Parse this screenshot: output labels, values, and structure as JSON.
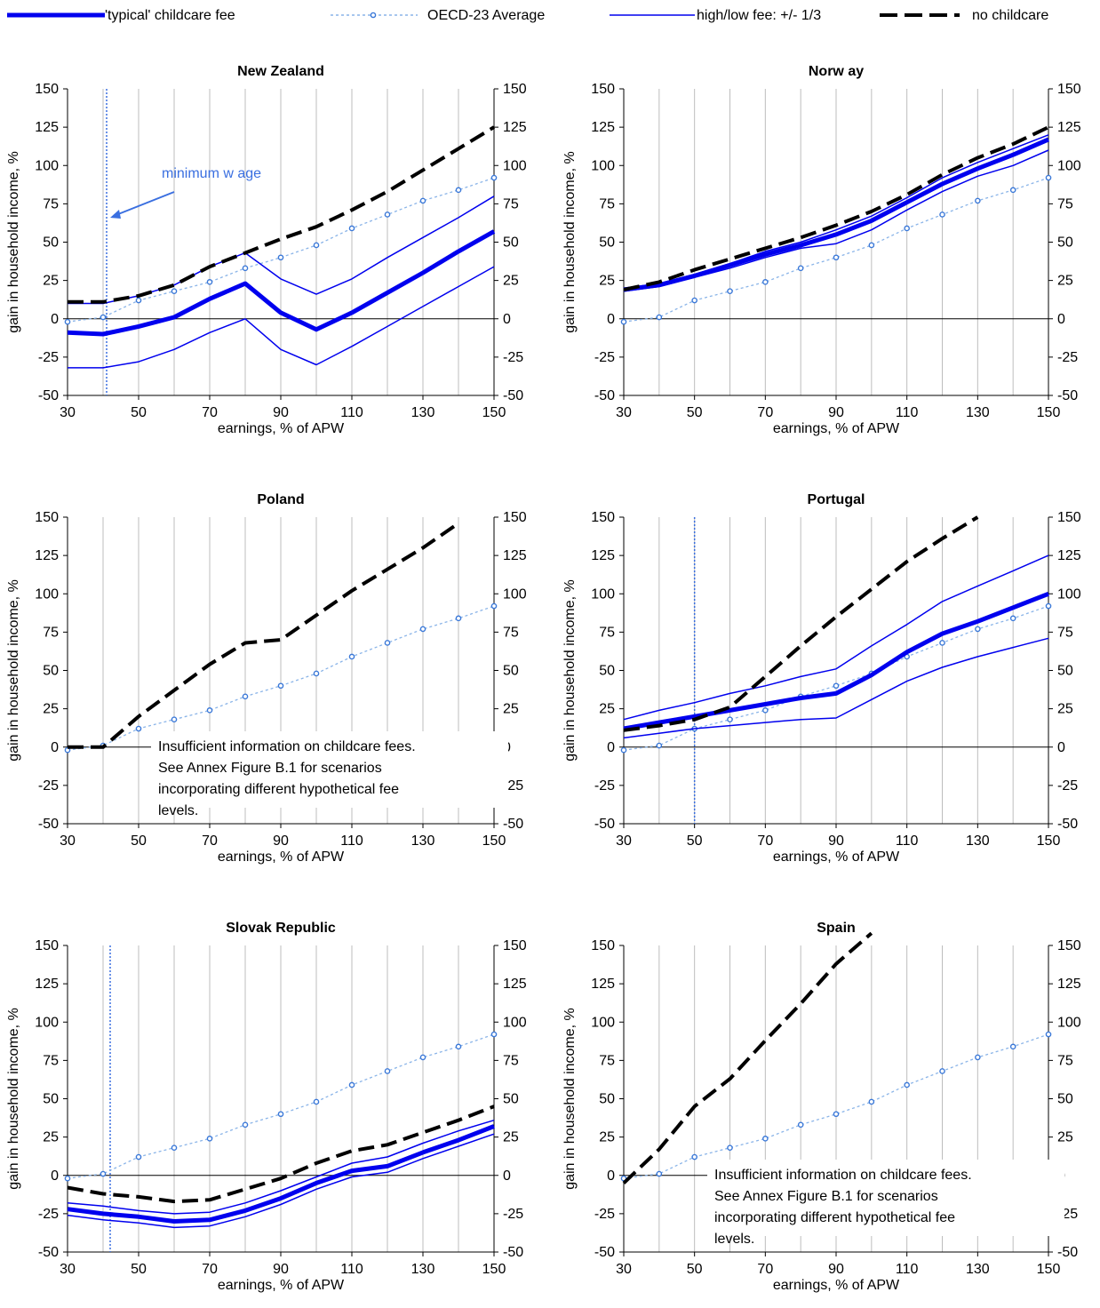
{
  "legend": {
    "items": [
      {
        "key": "typical",
        "label": "'typical' childcare fee"
      },
      {
        "key": "oecd",
        "label": "OECD-23 Average"
      },
      {
        "key": "highlow",
        "label": "high/low  fee: +/- 1/3"
      },
      {
        "key": "nochild",
        "label": "no childcare"
      }
    ]
  },
  "colors": {
    "fee_lines": "#0000ee",
    "oecd_line": "#8ab4e8",
    "oecd_marker": "#3a78d8",
    "no_childcare": "#000000",
    "minwage_line": "#3a6fe0",
    "grid": "#bdbdbd"
  },
  "chart_data": [
    {
      "type": "line",
      "title": "New Zealand",
      "xlabel": "earnings, % of APW",
      "ylabel": "gain in household income, %",
      "xlim": [
        30,
        150
      ],
      "ylim": [
        -50,
        150
      ],
      "x_ticks": [
        30,
        50,
        70,
        90,
        110,
        130,
        150
      ],
      "y_ticks": [
        -50,
        -25,
        0,
        25,
        50,
        75,
        100,
        125,
        150
      ],
      "grid": true,
      "x": [
        30,
        40,
        50,
        60,
        70,
        80,
        90,
        100,
        110,
        120,
        130,
        140,
        150
      ],
      "series": [
        {
          "name": "'typical' childcare fee",
          "values": [
            -9,
            -10,
            -5,
            1,
            13,
            23,
            4,
            -7,
            4,
            17,
            30,
            44,
            57
          ]
        },
        {
          "name": "OECD-23 Average",
          "values": [
            -2,
            1,
            12,
            18,
            24,
            33,
            40,
            48,
            59,
            68,
            77,
            84,
            92
          ]
        },
        {
          "name": "high/low  fee: +/- 1/3",
          "values": [
            10,
            10,
            15,
            22,
            34,
            43,
            26,
            16,
            26,
            40,
            53,
            66,
            80
          ]
        },
        {
          "name": "high/low  fee: +/- 1/3",
          "values": [
            -32,
            -32,
            -28,
            -20,
            -9,
            0,
            -20,
            -30,
            -18,
            -5,
            8,
            21,
            34
          ]
        },
        {
          "name": "no childcare",
          "values": [
            11,
            11,
            15,
            22,
            34,
            43,
            52,
            60,
            71,
            83,
            97,
            111,
            125
          ]
        }
      ],
      "minimum_wage_x": 41,
      "annotation": "minimum w age",
      "note": ""
    },
    {
      "type": "line",
      "title": "Norw ay",
      "xlabel": "earnings, % of APW",
      "ylabel": "gain in household income, %",
      "xlim": [
        30,
        150
      ],
      "ylim": [
        -50,
        150
      ],
      "x_ticks": [
        30,
        50,
        70,
        90,
        110,
        130,
        150
      ],
      "y_ticks": [
        -50,
        -25,
        0,
        25,
        50,
        75,
        100,
        125,
        150
      ],
      "grid": true,
      "x": [
        30,
        40,
        50,
        60,
        70,
        80,
        90,
        100,
        110,
        120,
        130,
        140,
        150
      ],
      "series": [
        {
          "name": "'typical' childcare fee",
          "values": [
            19,
            22,
            28,
            35,
            42,
            48,
            55,
            64,
            76,
            88,
            98,
            107,
            117
          ]
        },
        {
          "name": "OECD-23 Average",
          "values": [
            -2,
            1,
            12,
            18,
            24,
            33,
            40,
            48,
            59,
            68,
            77,
            84,
            92
          ]
        },
        {
          "name": "high/low  fee: +/- 1/3",
          "values": [
            20,
            23,
            29,
            36,
            44,
            50,
            58,
            67,
            79,
            92,
            102,
            111,
            120
          ]
        },
        {
          "name": "high/low  fee: +/- 1/3",
          "values": [
            18,
            21,
            27,
            33,
            40,
            46,
            49,
            58,
            71,
            83,
            93,
            100,
            110
          ]
        },
        {
          "name": "no childcare",
          "values": [
            19,
            24,
            32,
            39,
            46,
            53,
            61,
            70,
            81,
            94,
            105,
            114,
            125
          ]
        }
      ],
      "minimum_wage_x": null,
      "annotation": "",
      "note": ""
    },
    {
      "type": "line",
      "title": "Poland",
      "xlabel": "earnings, % of APW",
      "ylabel": "gain in household income, %",
      "xlim": [
        30,
        150
      ],
      "ylim": [
        -50,
        150
      ],
      "x_ticks": [
        30,
        50,
        70,
        90,
        110,
        130,
        150
      ],
      "y_ticks": [
        -50,
        -25,
        0,
        25,
        50,
        75,
        100,
        125,
        150
      ],
      "grid": true,
      "x": [
        30,
        40,
        50,
        60,
        70,
        80,
        90,
        100,
        110,
        120,
        130,
        140,
        150
      ],
      "series": [
        {
          "name": "OECD-23 Average",
          "values": [
            -2,
            1,
            12,
            18,
            24,
            33,
            40,
            48,
            59,
            68,
            77,
            84,
            92
          ]
        },
        {
          "name": "no childcare",
          "values": [
            0,
            0,
            20,
            37,
            54,
            68,
            70,
            86,
            102,
            116,
            130,
            146,
            null
          ]
        }
      ],
      "minimum_wage_x": null,
      "annotation": "",
      "note": "Insufficient information on childcare fees. See Annex Figure B.1 for scenarios incorporating different hypothetical fee levels."
    },
    {
      "type": "line",
      "title": "Portugal",
      "xlabel": "earnings, % of APW",
      "ylabel": "gain in household income, %",
      "xlim": [
        30,
        150
      ],
      "ylim": [
        -50,
        150
      ],
      "x_ticks": [
        30,
        50,
        70,
        90,
        110,
        130,
        150
      ],
      "y_ticks": [
        -50,
        -25,
        0,
        25,
        50,
        75,
        100,
        125,
        150
      ],
      "grid": true,
      "x": [
        30,
        40,
        50,
        60,
        70,
        80,
        90,
        100,
        110,
        120,
        130,
        140,
        150
      ],
      "series": [
        {
          "name": "'typical' childcare fee",
          "values": [
            12,
            16,
            20,
            24,
            28,
            32,
            35,
            47,
            62,
            74,
            82,
            91,
            100
          ]
        },
        {
          "name": "OECD-23 Average",
          "values": [
            -2,
            1,
            12,
            18,
            24,
            33,
            40,
            48,
            59,
            68,
            77,
            84,
            92
          ]
        },
        {
          "name": "high/low  fee: +/- 1/3",
          "values": [
            18,
            24,
            29,
            35,
            40,
            46,
            51,
            66,
            80,
            95,
            105,
            115,
            125
          ]
        },
        {
          "name": "high/low  fee: +/- 1/3",
          "values": [
            6,
            9,
            12,
            14,
            16,
            18,
            19,
            31,
            43,
            52,
            59,
            65,
            71
          ]
        },
        {
          "name": "no childcare",
          "values": [
            11,
            14,
            18,
            26,
            46,
            66,
            85,
            103,
            121,
            136,
            150,
            null,
            null
          ]
        }
      ],
      "minimum_wage_x": 50,
      "annotation": "",
      "note": ""
    },
    {
      "type": "line",
      "title": "Slovak Republic",
      "xlabel": "earnings, % of APW",
      "ylabel": "gain in household income, %",
      "xlim": [
        30,
        150
      ],
      "ylim": [
        -50,
        150
      ],
      "x_ticks": [
        30,
        50,
        70,
        90,
        110,
        130,
        150
      ],
      "y_ticks": [
        -50,
        -25,
        0,
        25,
        50,
        75,
        100,
        125,
        150
      ],
      "grid": true,
      "x": [
        30,
        40,
        50,
        60,
        70,
        80,
        90,
        100,
        110,
        120,
        130,
        140,
        150
      ],
      "series": [
        {
          "name": "'typical' childcare fee",
          "values": [
            -22,
            -25,
            -27,
            -30,
            -29,
            -23,
            -15,
            -5,
            3,
            6,
            15,
            23,
            32
          ]
        },
        {
          "name": "OECD-23 Average",
          "values": [
            -2,
            1,
            12,
            18,
            24,
            33,
            40,
            48,
            59,
            68,
            77,
            84,
            92
          ]
        },
        {
          "name": "high/low  fee: +/- 1/3",
          "values": [
            -18,
            -20,
            -23,
            -25,
            -24,
            -18,
            -10,
            -1,
            8,
            12,
            21,
            29,
            36
          ]
        },
        {
          "name": "high/low  fee: +/- 1/3",
          "values": [
            -26,
            -29,
            -31,
            -34,
            -33,
            -27,
            -19,
            -9,
            -1,
            2,
            11,
            19,
            27
          ]
        },
        {
          "name": "no childcare",
          "values": [
            -8,
            -12,
            -14,
            -17,
            -16,
            -9,
            -2,
            8,
            16,
            20,
            28,
            36,
            45
          ]
        }
      ],
      "minimum_wage_x": 42,
      "annotation": "",
      "note": ""
    },
    {
      "type": "line",
      "title": "Spain",
      "xlabel": "earnings, % of APW",
      "ylabel": "gain in household income, %",
      "xlim": [
        30,
        150
      ],
      "ylim": [
        -50,
        150
      ],
      "x_ticks": [
        30,
        50,
        70,
        90,
        110,
        130,
        150
      ],
      "y_ticks": [
        -50,
        -25,
        0,
        25,
        50,
        75,
        100,
        125,
        150
      ],
      "grid": true,
      "x": [
        30,
        40,
        50,
        60,
        70,
        80,
        90,
        100,
        110,
        120,
        130,
        140,
        150
      ],
      "series": [
        {
          "name": "OECD-23 Average",
          "values": [
            -2,
            1,
            12,
            18,
            24,
            33,
            40,
            48,
            59,
            68,
            77,
            84,
            92
          ]
        },
        {
          "name": "no childcare",
          "values": [
            -5,
            17,
            45,
            63,
            88,
            112,
            138,
            158,
            null,
            null,
            null,
            null,
            null
          ]
        }
      ],
      "minimum_wage_x": null,
      "annotation": "",
      "note": "Insufficient information on childcare fees. See Annex Figure B.1 for scenarios incorporating different hypothetical fee levels."
    }
  ]
}
